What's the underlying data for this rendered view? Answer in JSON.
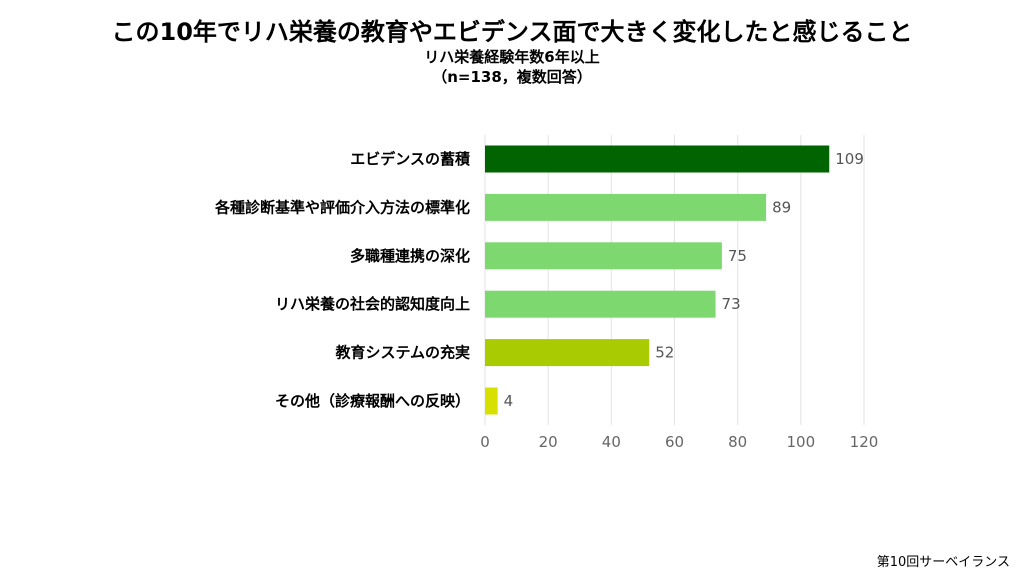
{
  "title": "この10年でリハ栄養の教育やエビデンス面で大きく変化したと感じること",
  "subtitle_line1": "リハ栄養経験年数6年以上",
  "subtitle_line2": "（n=138，複数回答）",
  "source": "第10回サーベイランス",
  "chart_data": {
    "type": "bar",
    "orientation": "horizontal",
    "categories": [
      "エビデンスの蓄積",
      "各種診断基準や評価介入方法の標準化",
      "多職種連携の深化",
      "リハ栄養の社会的認知度向上",
      "教育システムの充実",
      "その他（診療報酬への反映）"
    ],
    "values": [
      109,
      89,
      75,
      73,
      52,
      4
    ],
    "colors": [
      "#006400",
      "#7ed870",
      "#7ed870",
      "#7ed870",
      "#a8cc00",
      "#d8e000"
    ],
    "xlim": [
      0,
      120
    ],
    "xticks": [
      "0",
      "20",
      "40",
      "60",
      "80",
      "100",
      "120"
    ],
    "grid": true,
    "legend": "none"
  }
}
